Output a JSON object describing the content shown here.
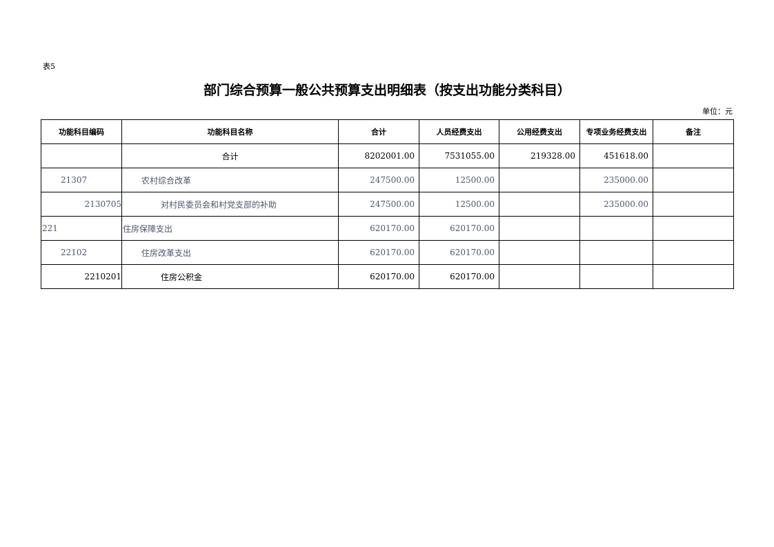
{
  "tag": "表5",
  "title": "部门综合预算一般公共预算支出明细表（按支出功能分类科目）",
  "unit": "单位：元",
  "headers": [
    "功能科目编码",
    "功能科目名称",
    "合计",
    "人员经费支出",
    "公用经费支出",
    "专项业务经费支出",
    "备注"
  ],
  "rows": [
    {
      "code": "",
      "name": "合计",
      "total": "8202001.00",
      "personnel": "7531055.00",
      "public": "219328.00",
      "special": "451618.00",
      "note": "",
      "level": 0
    },
    {
      "code": "21307",
      "name": "农村综合改革",
      "total": "247500.00",
      "personnel": "12500.00",
      "public": "",
      "special": "235000.00",
      "note": "",
      "level": 2
    },
    {
      "code": "2130705",
      "name": "对村民委员会和村党支部的补助",
      "total": "247500.00",
      "personnel": "12500.00",
      "public": "",
      "special": "235000.00",
      "note": "",
      "level": 3
    },
    {
      "code": "221",
      "name": "住房保障支出",
      "total": "620170.00",
      "personnel": "620170.00",
      "public": "",
      "special": "",
      "note": "",
      "level": 1
    },
    {
      "code": "22102",
      "name": "住房改革支出",
      "total": "620170.00",
      "personnel": "620170.00",
      "public": "",
      "special": "",
      "note": "",
      "level": 2
    },
    {
      "code": "2210201",
      "name": "住房公积金",
      "total": "620170.00",
      "personnel": "620170.00",
      "public": "",
      "special": "",
      "note": "",
      "level": 3
    }
  ]
}
